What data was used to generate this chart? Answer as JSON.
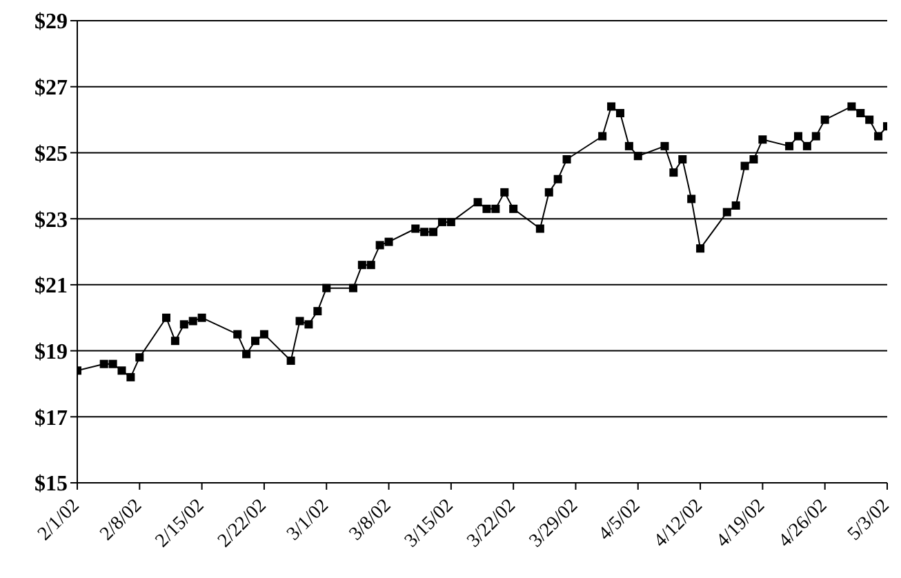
{
  "chart_data": {
    "type": "line",
    "x": [
      "--02-01",
      "--02-04",
      "--02-05",
      "--02-06",
      "--02-07",
      "--02-08",
      "--02-11",
      "--02-12",
      "--02-13",
      "--02-14",
      "--02-15",
      "--02-19",
      "--02-20",
      "--02-21",
      "--02-22",
      "--02-25",
      "--02-26",
      "--02-27",
      "--02-28",
      "--03-01",
      "--03-04",
      "--03-05",
      "--03-06",
      "--03-07",
      "--03-08",
      "--03-11",
      "--03-12",
      "--03-13",
      "--03-14",
      "--03-15",
      "--03-18",
      "--03-19",
      "--03-20",
      "--03-21",
      "--03-22",
      "--03-25",
      "--03-26",
      "--03-27",
      "--03-28",
      "--04-01",
      "--04-02",
      "--04-03",
      "--04-04",
      "--04-05",
      "--04-08",
      "--04-09",
      "--04-10",
      "--04-11",
      "--04-12",
      "--04-15",
      "--04-16",
      "--04-17",
      "--04-18",
      "--04-19",
      "--04-22",
      "--04-23",
      "--04-24",
      "--04-25",
      "--04-26",
      "--04-29",
      "--04-30",
      "--05-01",
      "--05-02",
      "--05-03"
    ],
    "series": [
      {
        "color": "#000000",
        "values": [
          18.4,
          18.6,
          18.6,
          18.4,
          18.2,
          18.8,
          20.0,
          19.3,
          19.8,
          19.9,
          20.0,
          19.5,
          18.9,
          19.3,
          19.5,
          18.7,
          19.9,
          19.8,
          20.2,
          20.9,
          20.9,
          21.6,
          21.6,
          22.2,
          22.3,
          22.7,
          22.6,
          22.6,
          22.9,
          22.9,
          23.5,
          23.3,
          23.3,
          23.8,
          23.3,
          22.7,
          23.8,
          24.2,
          24.8,
          25.5,
          26.4,
          26.2,
          25.2,
          24.9,
          25.2,
          24.4,
          24.8,
          23.6,
          22.1,
          23.2,
          23.4,
          24.6,
          24.8,
          25.4,
          25.2,
          25.5,
          25.2,
          25.5,
          26.0,
          26.4,
          26.2,
          26.0,
          25.5,
          25.8
        ]
      }
    ],
    "xlim": [
      "--02-01",
      "--05-03"
    ],
    "xticks": [
      {
        "value": "--02-01",
        "label": "2/1/02"
      },
      {
        "value": "--02-08",
        "label": "2/8/02"
      },
      {
        "value": "--02-15",
        "label": "2/15/02"
      },
      {
        "value": "--02-22",
        "label": "2/22/02"
      },
      {
        "value": "--03-01",
        "label": "3/1/02"
      },
      {
        "value": "--03-08",
        "label": "3/8/02"
      },
      {
        "value": "--03-15",
        "label": "3/15/02"
      },
      {
        "value": "--03-22",
        "label": "3/22/02"
      },
      {
        "value": "--03-29",
        "label": "3/29/02"
      },
      {
        "value": "--04-05",
        "label": "4/5/02"
      },
      {
        "value": "--04-12",
        "label": "4/12/02"
      },
      {
        "value": "--04-19",
        "label": "4/19/02"
      },
      {
        "value": "--04-26",
        "label": "4/26/02"
      },
      {
        "value": "--05-03",
        "label": "5/3/02"
      }
    ],
    "ylim": [
      15,
      29
    ],
    "yticks": [
      {
        "value": 15,
        "label": "$15"
      },
      {
        "value": 17,
        "label": "$17"
      },
      {
        "value": 19,
        "label": "$19"
      },
      {
        "value": 21,
        "label": "$21"
      },
      {
        "value": 23,
        "label": "$23"
      },
      {
        "value": 25,
        "label": "$25"
      },
      {
        "value": 27,
        "label": "$27"
      },
      {
        "value": 29,
        "label": "$29"
      }
    ],
    "grid": "y",
    "marker": "square",
    "line_style": "solid",
    "legend": false
  }
}
